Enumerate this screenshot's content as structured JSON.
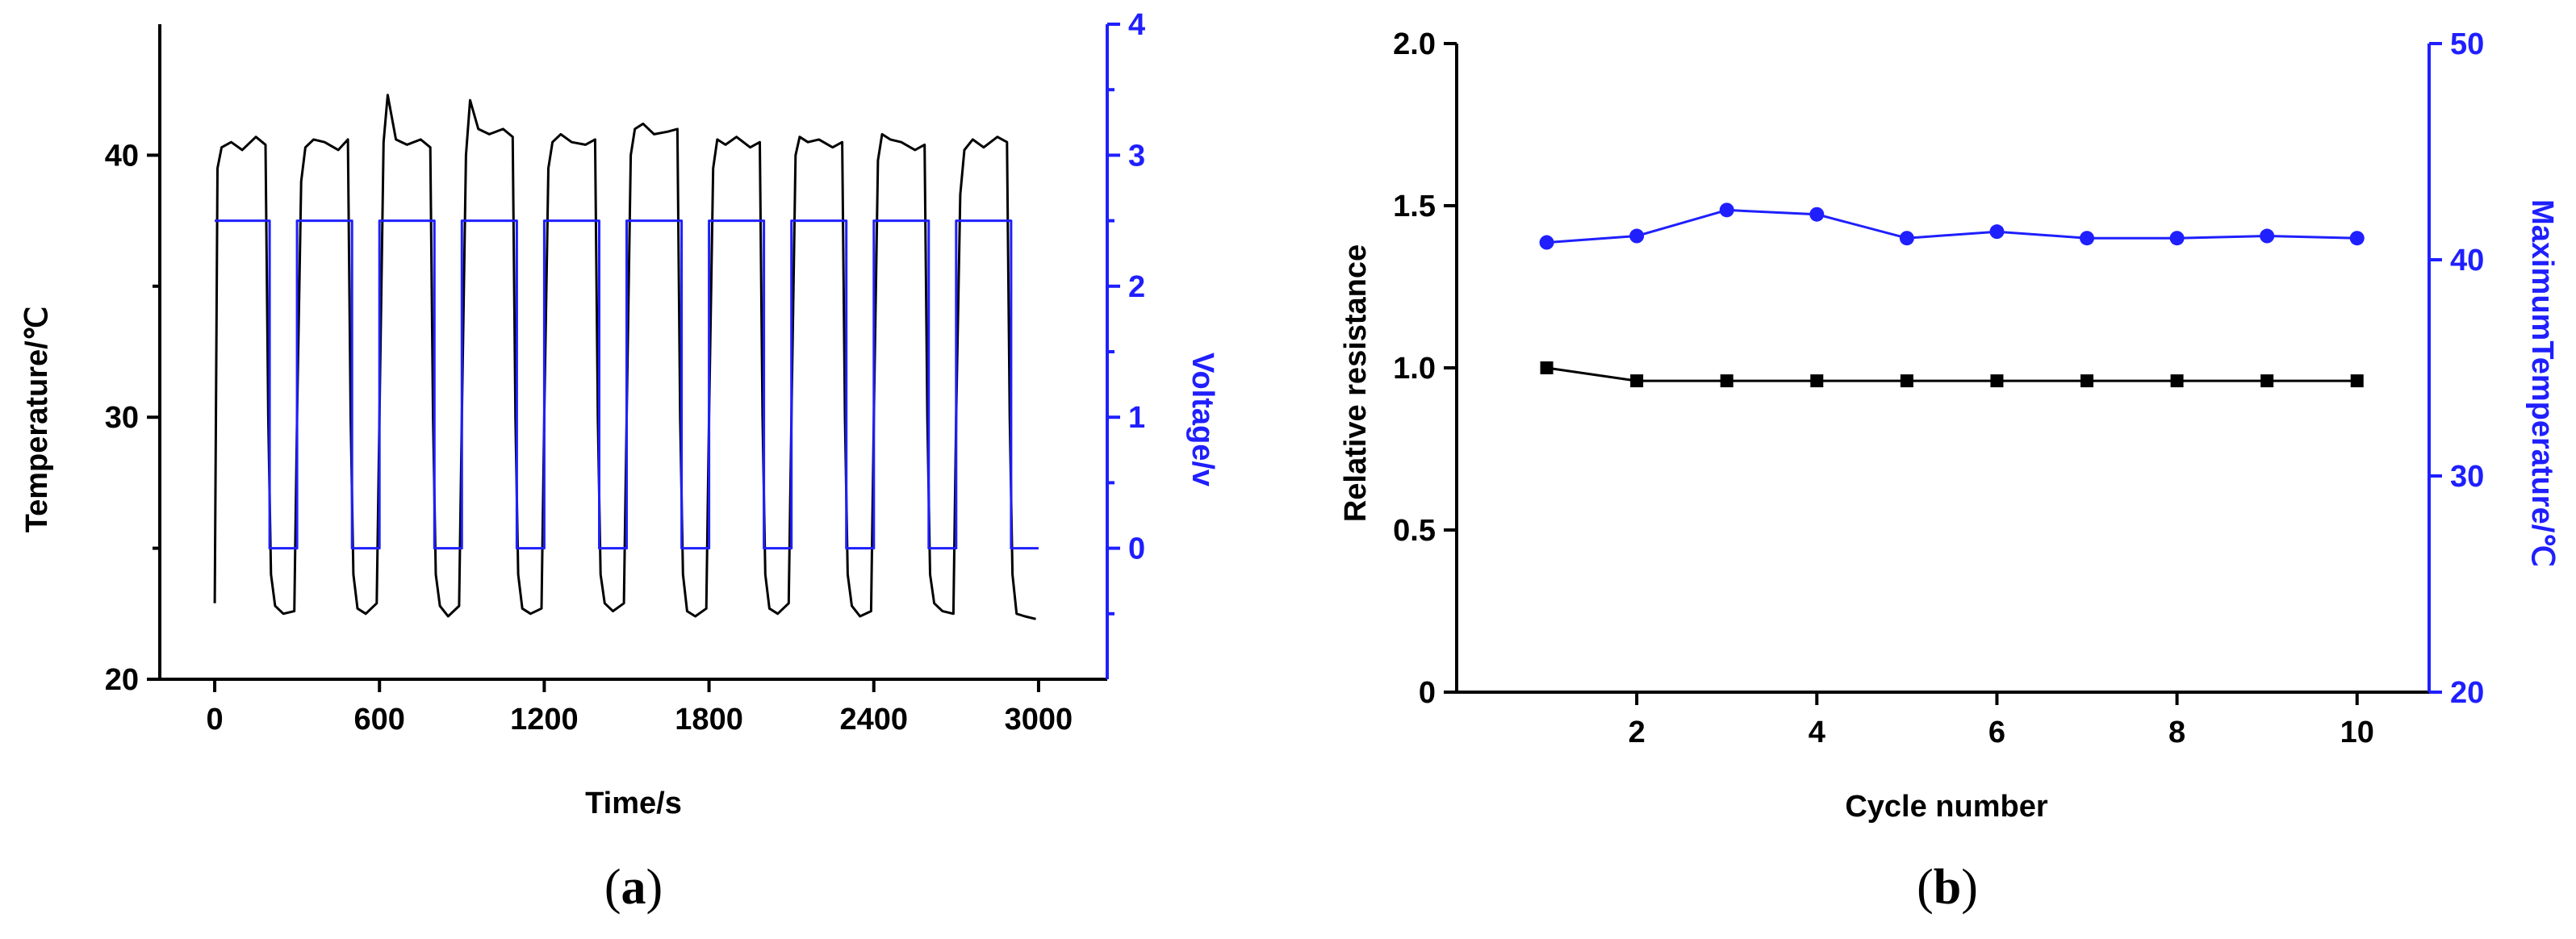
{
  "chart_data": [
    {
      "type": "line",
      "panel_label": "a",
      "xlabel": "Time/s",
      "ylabel": "Temperature/℃",
      "y2label": "Voltage/v",
      "xlim": [
        -200,
        3250
      ],
      "ylim": [
        20,
        45
      ],
      "y2lim": [
        -1,
        4
      ],
      "xticks": [
        0,
        600,
        1200,
        1800,
        2400,
        3000
      ],
      "yticks": [
        20,
        30,
        40
      ],
      "y2ticks": [
        0,
        1,
        2,
        3,
        4
      ],
      "colors": {
        "temperature": "#000000",
        "voltage": "#1f1fff"
      },
      "series": [
        {
          "name": "Temperature",
          "axis": "left",
          "x": [
            0,
            10,
            25,
            60,
            100,
            150,
            185,
            195,
            205,
            220,
            250,
            290,
            300,
            315,
            330,
            360,
            400,
            450,
            485,
            495,
            505,
            520,
            550,
            590,
            600,
            615,
            630,
            660,
            700,
            750,
            785,
            795,
            805,
            820,
            850,
            890,
            900,
            915,
            930,
            960,
            1000,
            1050,
            1085,
            1095,
            1105,
            1120,
            1150,
            1190,
            1200,
            1215,
            1230,
            1260,
            1300,
            1350,
            1385,
            1395,
            1405,
            1420,
            1450,
            1490,
            1500,
            1515,
            1530,
            1560,
            1600,
            1650,
            1685,
            1695,
            1705,
            1720,
            1750,
            1790,
            1800,
            1815,
            1830,
            1860,
            1900,
            1950,
            1985,
            1995,
            2005,
            2020,
            2050,
            2090,
            2100,
            2115,
            2130,
            2160,
            2200,
            2250,
            2285,
            2295,
            2305,
            2320,
            2350,
            2390,
            2400,
            2415,
            2430,
            2460,
            2500,
            2550,
            2585,
            2595,
            2605,
            2620,
            2650,
            2690,
            2700,
            2715,
            2730,
            2760,
            2800,
            2850,
            2885,
            2895,
            2905,
            2920,
            2950,
            2990
          ],
          "y": [
            22.9,
            39.5,
            40.3,
            40.5,
            40.2,
            40.7,
            40.4,
            30.0,
            24.0,
            22.8,
            22.5,
            22.6,
            30.0,
            39.0,
            40.3,
            40.6,
            40.5,
            40.2,
            40.6,
            30.0,
            24.0,
            22.7,
            22.5,
            22.9,
            30.0,
            40.5,
            42.3,
            40.6,
            40.4,
            40.6,
            40.3,
            30.0,
            24.0,
            22.8,
            22.4,
            22.8,
            30.0,
            40.0,
            42.1,
            41.0,
            40.8,
            41.0,
            40.7,
            30.0,
            24.0,
            22.7,
            22.5,
            22.7,
            30.0,
            39.5,
            40.5,
            40.8,
            40.5,
            40.4,
            40.6,
            30.0,
            24.0,
            22.9,
            22.6,
            22.9,
            30.0,
            40.0,
            41.0,
            41.2,
            40.8,
            40.9,
            41.0,
            30.0,
            24.0,
            22.6,
            22.4,
            22.7,
            30.0,
            39.5,
            40.6,
            40.4,
            40.7,
            40.3,
            40.5,
            30.0,
            24.0,
            22.7,
            22.5,
            22.9,
            30.0,
            40.0,
            40.7,
            40.5,
            40.6,
            40.3,
            40.5,
            30.0,
            24.0,
            22.8,
            22.4,
            22.6,
            30.0,
            39.8,
            40.8,
            40.6,
            40.5,
            40.2,
            40.4,
            30.0,
            24.0,
            22.9,
            22.6,
            22.5,
            30.0,
            38.5,
            40.2,
            40.6,
            40.3,
            40.7,
            40.5,
            30.0,
            24.0,
            22.5,
            22.4,
            22.3
          ]
        },
        {
          "name": "Voltage",
          "axis": "right",
          "x": [
            0,
            200,
            200,
            300,
            300,
            500,
            500,
            600,
            600,
            800,
            800,
            900,
            900,
            1100,
            1100,
            1200,
            1200,
            1400,
            1400,
            1500,
            1500,
            1700,
            1700,
            1800,
            1800,
            2000,
            2000,
            2100,
            2100,
            2300,
            2300,
            2400,
            2400,
            2600,
            2600,
            2700,
            2700,
            2900,
            2900,
            3000
          ],
          "y": [
            2.5,
            2.5,
            0,
            0,
            2.5,
            2.5,
            0,
            0,
            2.5,
            2.5,
            0,
            0,
            2.5,
            2.5,
            0,
            0,
            2.5,
            2.5,
            0,
            0,
            2.5,
            2.5,
            0,
            0,
            2.5,
            2.5,
            0,
            0,
            2.5,
            2.5,
            0,
            0,
            2.5,
            2.5,
            0,
            0,
            2.5,
            2.5,
            0,
            0
          ]
        }
      ]
    },
    {
      "type": "line",
      "panel_label": "b",
      "xlabel": "Cycle number",
      "ylabel": "Relative resistance",
      "y2label": "MaximumTemperature/℃",
      "xlim": [
        0,
        10.8
      ],
      "ylim": [
        0,
        2.0
      ],
      "y2lim": [
        20,
        50
      ],
      "xticks": [
        2,
        4,
        6,
        8,
        10
      ],
      "yticks": [
        0,
        0.5,
        1.0,
        1.5,
        2.0
      ],
      "ytick_labels": [
        "0",
        "0.5",
        "1.0",
        "1.5",
        "2.0"
      ],
      "y2ticks": [
        20,
        30,
        40,
        50
      ],
      "colors": {
        "resistance": "#000000",
        "max_temperature": "#1f1fff"
      },
      "series": [
        {
          "name": "Relative resistance",
          "axis": "left",
          "marker": "square",
          "x": [
            1,
            2,
            3,
            4,
            5,
            6,
            7,
            8,
            9,
            10
          ],
          "y": [
            1.0,
            0.96,
            0.96,
            0.96,
            0.96,
            0.96,
            0.96,
            0.96,
            0.96,
            0.96
          ]
        },
        {
          "name": "Maximum temperature",
          "axis": "right",
          "marker": "circle",
          "x": [
            1,
            2,
            3,
            4,
            5,
            6,
            7,
            8,
            9,
            10
          ],
          "y": [
            40.8,
            41.1,
            42.3,
            42.1,
            41.0,
            41.3,
            41.0,
            41.0,
            41.1,
            41.0
          ]
        }
      ]
    }
  ]
}
